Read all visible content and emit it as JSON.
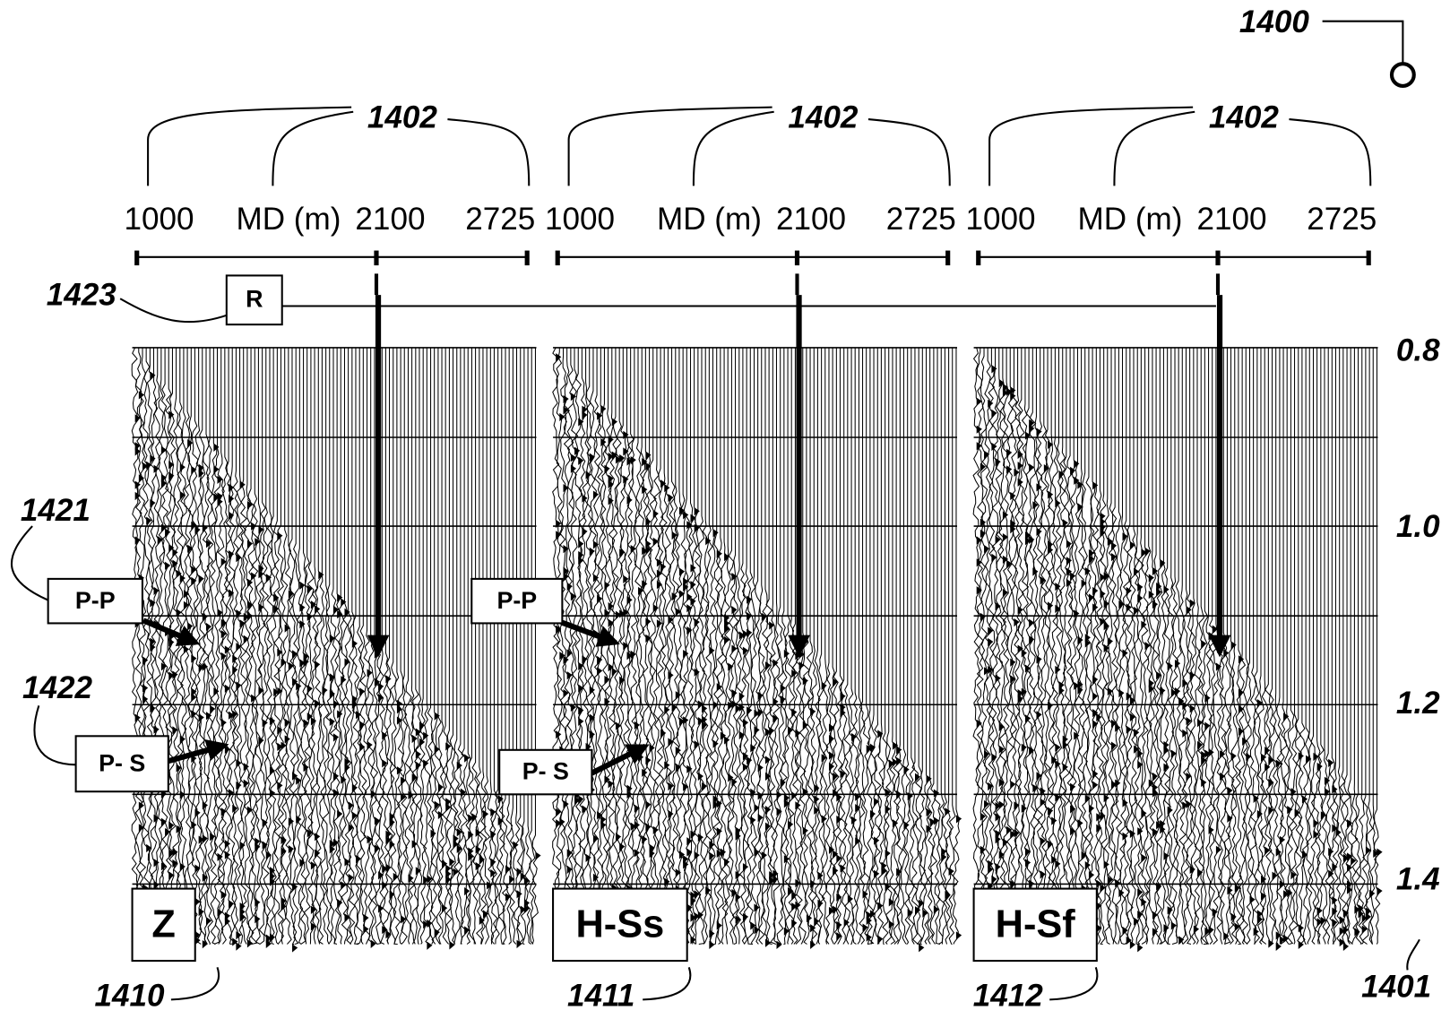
{
  "figure_ref": "1400",
  "time_axis": {
    "ref": "1401",
    "ticks": [
      "0.8",
      "1.0",
      "1.2",
      "1.4"
    ]
  },
  "reflector": {
    "ref": "1423",
    "label": "R"
  },
  "events": [
    {
      "ref": "1421",
      "label": "P-P"
    },
    {
      "ref": "1422",
      "label": "P- S"
    }
  ],
  "panels": [
    {
      "ref": "1410",
      "label": "Z",
      "axis_ref": "1402",
      "md_label": "MD (m)",
      "md_ticks": [
        "1000",
        "2100",
        "2725"
      ]
    },
    {
      "ref": "1411",
      "label": "H-Ss",
      "axis_ref": "1402",
      "md_label": "MD (m)",
      "md_ticks": [
        "1000",
        "2100",
        "2725"
      ]
    },
    {
      "ref": "1412",
      "label": "H-Sf",
      "axis_ref": "1402",
      "md_label": "MD (m)",
      "md_ticks": [
        "1000",
        "2100",
        "2725"
      ]
    }
  ]
}
